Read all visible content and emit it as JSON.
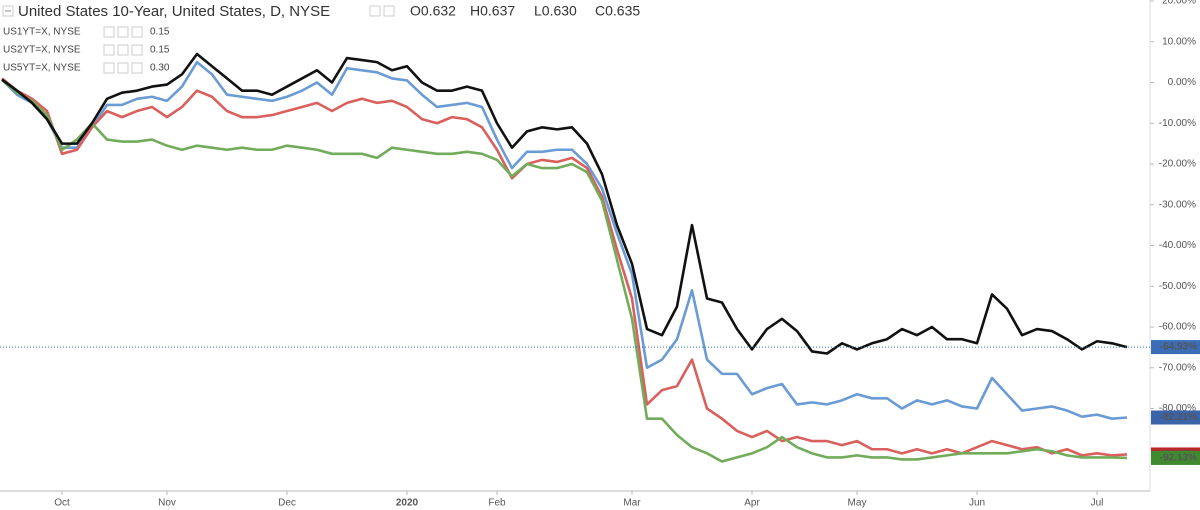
{
  "chart_data": {
    "type": "line",
    "ohlc": [
      "O0.632",
      "H0.637",
      "L0.630",
      "C0.635"
    ],
    "categories": [
      null,
      null,
      null,
      null,
      "Oct",
      null,
      null,
      null,
      null,
      null,
      null,
      "Nov",
      null,
      null,
      null,
      null,
      null,
      null,
      null,
      "Dec",
      null,
      null,
      null,
      null,
      null,
      null,
      null,
      "2020",
      null,
      null,
      null,
      null,
      null,
      "Feb",
      null,
      null,
      null,
      null,
      null,
      null,
      null,
      null,
      "Mar",
      null,
      null,
      null,
      null,
      null,
      null,
      null,
      "Apr",
      null,
      null,
      null,
      null,
      null,
      null,
      "May",
      null,
      null,
      null,
      null,
      null,
      null,
      null,
      "Jun",
      null,
      null,
      null,
      null,
      null,
      null,
      null,
      "Jul",
      null,
      null
    ],
    "ylim": [
      -100,
      20
    ],
    "yticks": [
      {
        "value": 20,
        "label": "20.00%"
      },
      {
        "value": 10,
        "label": "10.00%"
      },
      {
        "value": 0,
        "label": "0.00%"
      },
      {
        "value": -10,
        "label": "-10.00%"
      },
      {
        "value": -20,
        "label": "-20.00%"
      },
      {
        "value": -30,
        "label": "-30.00%"
      },
      {
        "value": -40,
        "label": "-40.00%"
      },
      {
        "value": -50,
        "label": "-50.00%"
      },
      {
        "value": -60,
        "label": "-60.00%"
      },
      {
        "value": -70,
        "label": "-70.00%"
      },
      {
        "value": -80,
        "label": "-80.00%"
      }
    ],
    "series": [
      {
        "name": "United States 10-Year, United States, D, NYSE",
        "color": "#111111",
        "values": [
          0.7,
          -2,
          -5,
          -9,
          -15,
          -15,
          -10,
          -4,
          -2.5,
          -2,
          -1,
          -0.5,
          2,
          7,
          4,
          1,
          -2,
          -2,
          -3,
          -1,
          1,
          3,
          0,
          6,
          5.5,
          5,
          3,
          4,
          0,
          -2,
          -2,
          -1,
          -2,
          -10,
          -16,
          -12,
          -11,
          -11.5,
          -11,
          -15,
          -22.5,
          -35,
          -44.5,
          -60.5,
          -62,
          -55,
          -35,
          -53,
          -54,
          -60.5,
          -65.5,
          -60.5,
          -58,
          -61,
          -66,
          -66.5,
          -64,
          -65.5,
          -64,
          -63,
          -60.5,
          -62,
          -60,
          -63,
          -63,
          -64,
          -52,
          -55.5,
          -62,
          -60.5,
          -61,
          -63,
          -65.5,
          -63.5,
          -64,
          -64.93
        ],
        "value_labels": [
          null,
          null,
          null,
          null,
          null,
          null,
          null,
          null,
          null,
          null,
          null,
          null,
          null,
          null,
          null,
          null,
          null,
          null,
          null,
          null,
          null,
          null,
          null,
          null,
          null,
          null,
          null,
          null,
          null,
          null,
          null,
          null,
          null,
          null,
          null,
          null,
          null,
          null,
          null,
          null,
          null,
          null,
          null,
          null,
          null,
          null,
          null,
          null,
          null,
          null,
          null,
          null,
          null,
          null,
          null,
          null,
          null,
          null,
          null,
          null,
          null,
          null,
          null,
          null,
          null,
          null,
          null,
          null,
          null,
          null,
          null,
          null,
          null,
          null,
          null,
          "-64.93%"
        ]
      },
      {
        "name": "US1YT=X, NYSE",
        "quote": "0.15",
        "color": "#72ac5a",
        "values": [
          0.7,
          -2.5,
          -4.5,
          -8,
          -16.5,
          -14,
          -10,
          -14,
          -14.5,
          -14.5,
          -14,
          -15.5,
          -16.5,
          -15.5,
          -16,
          -16.5,
          -16,
          -16.5,
          -16.5,
          -15.5,
          -16,
          -16.5,
          -17.5,
          -17.5,
          -17.5,
          -18.5,
          -16,
          -16.5,
          -17,
          -17.5,
          -17.5,
          -17,
          -17.5,
          -19,
          -23,
          -20,
          -21,
          -21,
          -20,
          -22,
          -29,
          -43.5,
          -58,
          -82.5,
          -82.5,
          -86.5,
          -89.5,
          -91,
          -93,
          -92,
          -91,
          -89.5,
          -87,
          -89.5,
          -91,
          -92,
          -92,
          -91.5,
          -92,
          -92,
          -92.5,
          -92.5,
          -92,
          -91.5,
          -91,
          -91,
          -91,
          -91,
          -90.5,
          -90,
          -90.5,
          -91.5,
          -92,
          -92,
          -92,
          -92.13
        ],
        "value_labels": [
          null,
          null,
          null,
          null,
          null,
          null,
          null,
          null,
          null,
          null,
          null,
          null,
          null,
          null,
          null,
          null,
          null,
          null,
          null,
          null,
          null,
          null,
          null,
          null,
          null,
          null,
          null,
          null,
          null,
          null,
          null,
          null,
          null,
          null,
          null,
          null,
          null,
          null,
          null,
          null,
          null,
          null,
          null,
          null,
          null,
          null,
          null,
          null,
          null,
          null,
          null,
          null,
          null,
          null,
          null,
          null,
          null,
          null,
          null,
          null,
          null,
          null,
          null,
          null,
          null,
          null,
          null,
          null,
          null,
          null,
          null,
          null,
          null,
          null,
          null,
          "-92.13%"
        ]
      },
      {
        "name": "US2YT=X, NYSE",
        "quote": "0.15",
        "color": "#d9605c",
        "values": [
          1,
          -2,
          -4,
          -7,
          -17.5,
          -16.5,
          -11,
          -7,
          -8.5,
          -7,
          -6,
          -8.5,
          -6,
          -2,
          -3.5,
          -7,
          -8.5,
          -8.5,
          -8,
          -7,
          -6,
          -5,
          -7,
          -5,
          -4,
          -5,
          -4.5,
          -6,
          -9,
          -10,
          -8.5,
          -9,
          -11,
          -16.5,
          -23.5,
          -20,
          -19,
          -19.5,
          -18.5,
          -21,
          -28,
          -41,
          -53,
          -79,
          -75.5,
          -74.5,
          -68,
          -80,
          -82.5,
          -85.5,
          -87,
          -85.5,
          -88,
          -87,
          -88,
          -88,
          -89,
          -88,
          -90,
          -90,
          -91,
          -90,
          -91,
          -90,
          -91,
          -89.5,
          -88,
          -89,
          -90,
          -89.5,
          -91,
          -90,
          -91.5,
          -91,
          -91.5,
          -91.28
        ],
        "value_labels": [
          null,
          null,
          null,
          null,
          null,
          null,
          null,
          null,
          null,
          null,
          null,
          null,
          null,
          null,
          null,
          null,
          null,
          null,
          null,
          null,
          null,
          null,
          null,
          null,
          null,
          null,
          null,
          null,
          null,
          null,
          null,
          null,
          null,
          null,
          null,
          null,
          null,
          null,
          null,
          null,
          null,
          null,
          null,
          null,
          null,
          null,
          null,
          null,
          null,
          null,
          null,
          null,
          null,
          null,
          null,
          null,
          null,
          null,
          null,
          null,
          null,
          null,
          null,
          null,
          null,
          null,
          null,
          null,
          null,
          null,
          null,
          null,
          null,
          null,
          null,
          "-91.28%"
        ]
      },
      {
        "name": "US5YT=X, NYSE",
        "quote": "0.30",
        "color": "#6a9bd4",
        "values": [
          0.7,
          -3,
          -5,
          -9,
          -16,
          -16,
          -11,
          -5.5,
          -5.5,
          -4,
          -3.5,
          -4.5,
          -1,
          5,
          2,
          -3,
          -3.5,
          -4,
          -4.5,
          -3.5,
          -2,
          0,
          -3,
          3.5,
          3,
          2.5,
          1,
          0.5,
          -3,
          -6,
          -5.5,
          -5,
          -6,
          -14,
          -21,
          -17,
          -17,
          -16.5,
          -16.5,
          -20,
          -26,
          -37,
          -47,
          -70,
          -68,
          -63,
          -51,
          -68,
          -71.5,
          -71.5,
          -76.5,
          -75,
          -74,
          -79,
          -78.5,
          -79,
          -78,
          -76.5,
          -77.5,
          -77.5,
          -80,
          -78,
          -79,
          -78,
          -79.5,
          -80,
          -72.5,
          -76.5,
          -80.5,
          -80,
          -79.5,
          -80.5,
          -82,
          -81.5,
          -82.5,
          -82.21
        ],
        "value_labels": [
          null,
          null,
          null,
          null,
          null,
          null,
          null,
          null,
          null,
          null,
          null,
          null,
          null,
          null,
          null,
          null,
          null,
          null,
          null,
          null,
          null,
          null,
          null,
          null,
          null,
          null,
          null,
          null,
          null,
          null,
          null,
          null,
          null,
          null,
          null,
          null,
          null,
          null,
          null,
          null,
          null,
          null,
          null,
          null,
          null,
          null,
          null,
          null,
          null,
          null,
          null,
          null,
          null,
          null,
          null,
          null,
          null,
          null,
          null,
          null,
          null,
          null,
          null,
          null,
          null,
          null,
          null,
          null,
          null,
          null,
          null,
          null,
          null,
          null,
          null,
          "-82.21%"
        ]
      }
    ]
  }
}
